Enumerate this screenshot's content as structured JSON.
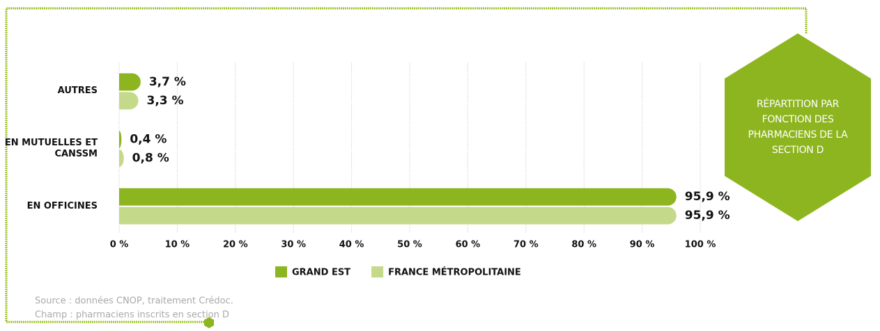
{
  "chart_data": {
    "type": "bar",
    "orientation": "horizontal",
    "title": "RÉPARTITION PAR FONCTION DES PHARMACIENS DE LA SECTION D",
    "categories": [
      "AUTRES",
      "EN MUTUELLES ET CANSSM",
      "EN OFFICINES"
    ],
    "series": [
      {
        "name": "GRAND EST",
        "color": "#8db51f",
        "values": [
          3.7,
          0.4,
          95.9
        ],
        "value_labels": [
          "3,7 %",
          "0,4 %",
          "95,9 %"
        ]
      },
      {
        "name": "FRANCE MÉTROPOLITAINE",
        "color": "#c5d98a",
        "values": [
          3.3,
          0.8,
          95.9
        ],
        "value_labels": [
          "3,3 %",
          "0,8 %",
          "95,9 %"
        ]
      }
    ],
    "xlim": [
      0,
      100
    ],
    "xticks": [
      {
        "value": 0,
        "label": "0 %"
      },
      {
        "value": 10,
        "label": "10 %"
      },
      {
        "value": 20,
        "label": "20 %"
      },
      {
        "value": 30,
        "label": "30 %"
      },
      {
        "value": 40,
        "label": "40 %"
      },
      {
        "value": 50,
        "label": "50 %"
      },
      {
        "value": 60,
        "label": "60 %"
      },
      {
        "value": 70,
        "label": "70 %"
      },
      {
        "value": 80,
        "label": "80 %"
      },
      {
        "value": 90,
        "label": "90 %"
      },
      {
        "value": 100,
        "label": "100 %"
      }
    ],
    "grid": true,
    "legend": "bottom",
    "notes": [
      "Source : données CNOP, traitement Crédoc.",
      "Champ : pharmaciens inscrits en section D"
    ]
  }
}
